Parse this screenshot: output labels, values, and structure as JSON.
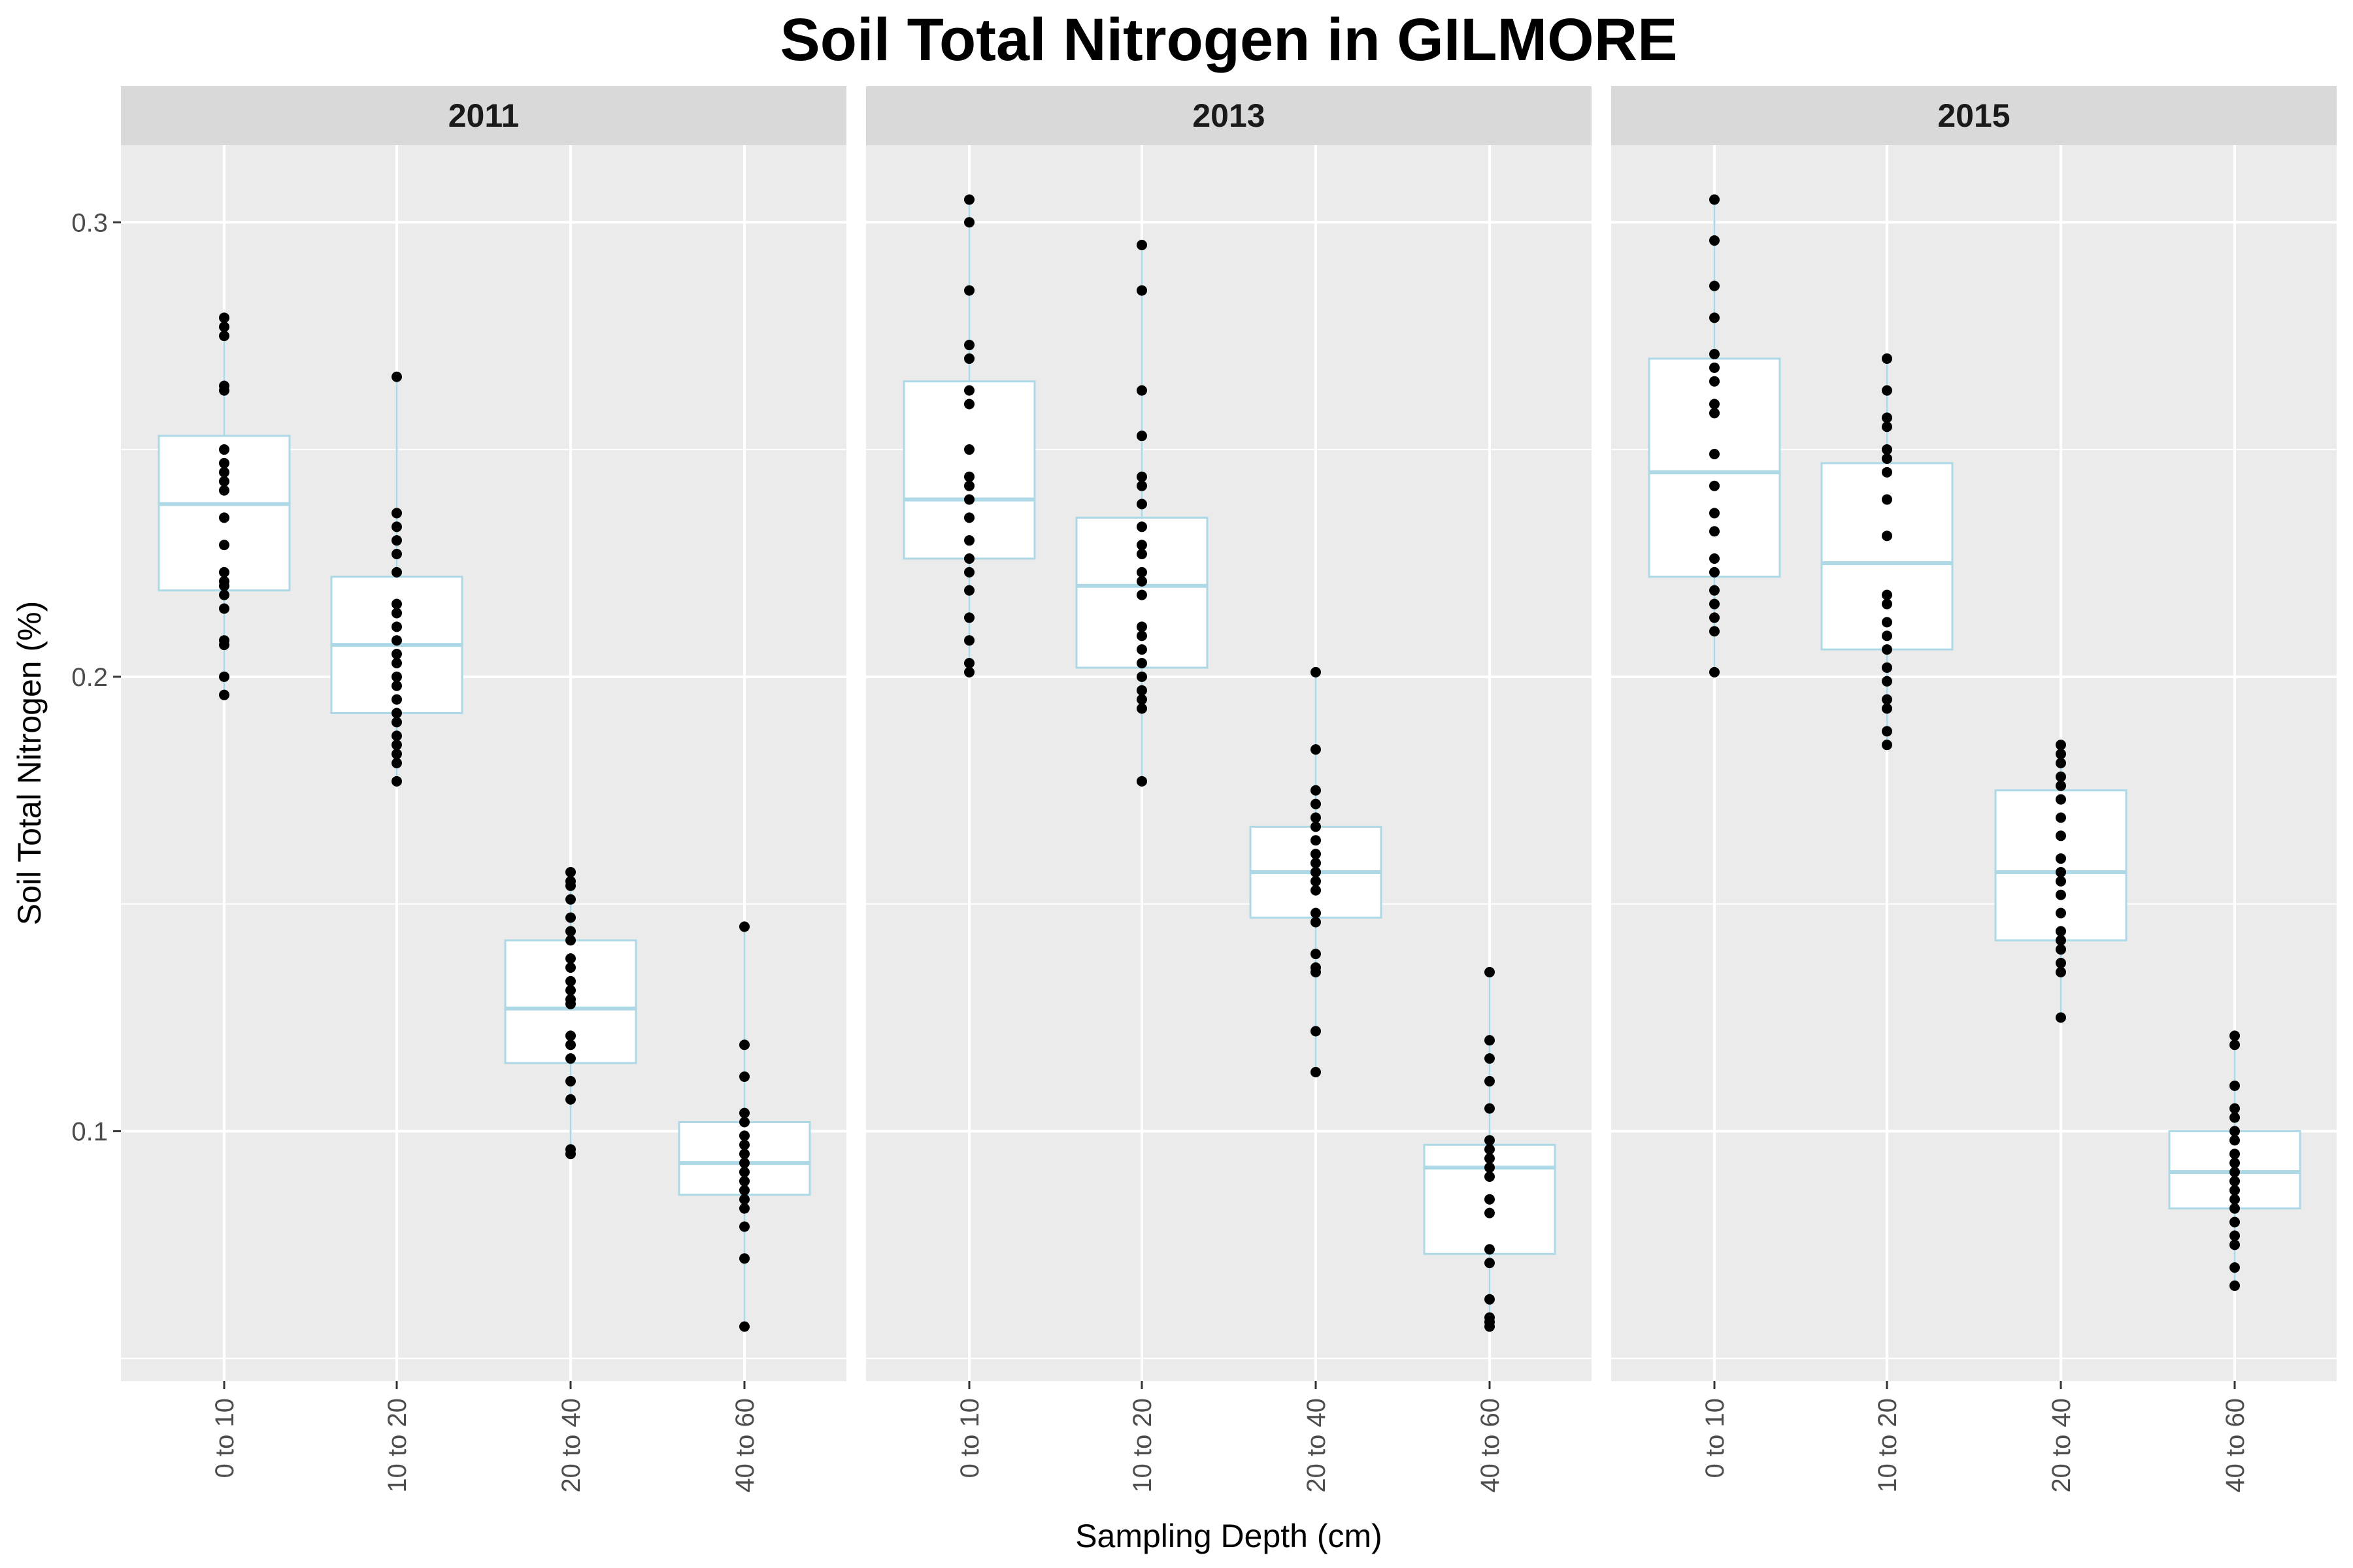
{
  "chart_data": {
    "type": "box",
    "title": "Soil Total Nitrogen in GILMORE",
    "xlabel": "Sampling Depth (cm)",
    "ylabel": "Soil Total Nitrogen (%)",
    "ylim": [
      0.045,
      0.317
    ],
    "yticks": [
      0.1,
      0.2,
      0.3
    ],
    "ytick_labels": [
      "0.1",
      "0.2",
      "0.3"
    ],
    "categories": [
      "0 to 10",
      "10 to 20",
      "20 to 40",
      "40 to 60"
    ],
    "grid": true,
    "colors": {
      "panel_bg": "#ebebeb",
      "strip_bg": "#d9d9d9",
      "gridline": "#ffffff",
      "box_outline": "#add8e6",
      "box_fill": "#ffffff",
      "point": "#000000"
    },
    "facets": [
      {
        "label": "2011",
        "boxes": [
          {
            "category": "0 to 10",
            "min": 0.196,
            "q1": 0.219,
            "median": 0.238,
            "q3": 0.253,
            "max": 0.279,
            "points": [
              0.279,
              0.277,
              0.275,
              0.264,
              0.263,
              0.25,
              0.247,
              0.245,
              0.243,
              0.241,
              0.235,
              0.229,
              0.223,
              0.221,
              0.22,
              0.218,
              0.215,
              0.208,
              0.207,
              0.2,
              0.196
            ]
          },
          {
            "category": "10 to 20",
            "min": 0.177,
            "q1": 0.192,
            "median": 0.207,
            "q3": 0.222,
            "max": 0.266,
            "points": [
              0.266,
              0.236,
              0.233,
              0.23,
              0.227,
              0.223,
              0.216,
              0.214,
              0.211,
              0.208,
              0.205,
              0.203,
              0.2,
              0.198,
              0.195,
              0.192,
              0.19,
              0.187,
              0.185,
              0.183,
              0.181,
              0.177
            ]
          },
          {
            "category": "20 to 40",
            "min": 0.095,
            "q1": 0.115,
            "median": 0.127,
            "q3": 0.142,
            "max": 0.157,
            "points": [
              0.157,
              0.155,
              0.154,
              0.151,
              0.147,
              0.144,
              0.142,
              0.138,
              0.136,
              0.133,
              0.131,
              0.129,
              0.128,
              0.121,
              0.119,
              0.116,
              0.111,
              0.107,
              0.096,
              0.095
            ]
          },
          {
            "category": "40 to 60",
            "min": 0.057,
            "q1": 0.086,
            "median": 0.093,
            "q3": 0.102,
            "max": 0.145,
            "points": [
              0.145,
              0.119,
              0.112,
              0.104,
              0.102,
              0.099,
              0.097,
              0.095,
              0.093,
              0.091,
              0.089,
              0.087,
              0.085,
              0.083,
              0.079,
              0.072,
              0.057
            ]
          }
        ]
      },
      {
        "label": "2013",
        "boxes": [
          {
            "category": "0 to 10",
            "min": 0.201,
            "q1": 0.226,
            "median": 0.239,
            "q3": 0.265,
            "max": 0.305,
            "points": [
              0.305,
              0.3,
              0.285,
              0.273,
              0.27,
              0.263,
              0.26,
              0.25,
              0.244,
              0.242,
              0.239,
              0.235,
              0.23,
              0.226,
              0.223,
              0.219,
              0.213,
              0.208,
              0.203,
              0.201
            ]
          },
          {
            "category": "10 to 20",
            "min": 0.177,
            "q1": 0.202,
            "median": 0.22,
            "q3": 0.235,
            "max": 0.295,
            "points": [
              0.295,
              0.285,
              0.263,
              0.253,
              0.244,
              0.242,
              0.238,
              0.233,
              0.229,
              0.227,
              0.223,
              0.221,
              0.218,
              0.211,
              0.209,
              0.206,
              0.203,
              0.2,
              0.197,
              0.195,
              0.193,
              0.177
            ]
          },
          {
            "category": "20 to 40",
            "min": 0.113,
            "q1": 0.147,
            "median": 0.157,
            "q3": 0.167,
            "max": 0.201,
            "points": [
              0.201,
              0.184,
              0.175,
              0.172,
              0.169,
              0.167,
              0.164,
              0.161,
              0.159,
              0.157,
              0.155,
              0.153,
              0.148,
              0.146,
              0.139,
              0.136,
              0.135,
              0.122,
              0.113
            ]
          },
          {
            "category": "40 to 60",
            "min": 0.057,
            "q1": 0.073,
            "median": 0.092,
            "q3": 0.097,
            "max": 0.135,
            "points": [
              0.135,
              0.12,
              0.116,
              0.111,
              0.105,
              0.098,
              0.096,
              0.094,
              0.092,
              0.09,
              0.085,
              0.082,
              0.074,
              0.071,
              0.063,
              0.059,
              0.058,
              0.057
            ]
          }
        ]
      },
      {
        "label": "2015",
        "boxes": [
          {
            "category": "0 to 10",
            "min": 0.201,
            "q1": 0.222,
            "median": 0.245,
            "q3": 0.27,
            "max": 0.305,
            "points": [
              0.305,
              0.296,
              0.286,
              0.279,
              0.271,
              0.268,
              0.265,
              0.26,
              0.258,
              0.249,
              0.242,
              0.236,
              0.232,
              0.226,
              0.223,
              0.219,
              0.216,
              0.213,
              0.21,
              0.201
            ]
          },
          {
            "category": "10 to 20",
            "min": 0.185,
            "q1": 0.206,
            "median": 0.225,
            "q3": 0.247,
            "max": 0.27,
            "points": [
              0.27,
              0.263,
              0.257,
              0.255,
              0.25,
              0.248,
              0.245,
              0.239,
              0.231,
              0.218,
              0.216,
              0.212,
              0.209,
              0.206,
              0.202,
              0.199,
              0.195,
              0.193,
              0.188,
              0.185
            ]
          },
          {
            "category": "20 to 40",
            "min": 0.125,
            "q1": 0.142,
            "median": 0.157,
            "q3": 0.175,
            "max": 0.185,
            "points": [
              0.185,
              0.183,
              0.181,
              0.178,
              0.176,
              0.173,
              0.169,
              0.165,
              0.16,
              0.157,
              0.155,
              0.152,
              0.148,
              0.144,
              0.142,
              0.14,
              0.137,
              0.135,
              0.125
            ]
          },
          {
            "category": "40 to 60",
            "min": 0.066,
            "q1": 0.083,
            "median": 0.091,
            "q3": 0.1,
            "max": 0.121,
            "points": [
              0.121,
              0.119,
              0.11,
              0.105,
              0.103,
              0.1,
              0.098,
              0.095,
              0.093,
              0.091,
              0.089,
              0.087,
              0.085,
              0.083,
              0.08,
              0.077,
              0.075,
              0.07,
              0.066
            ]
          }
        ]
      }
    ]
  }
}
